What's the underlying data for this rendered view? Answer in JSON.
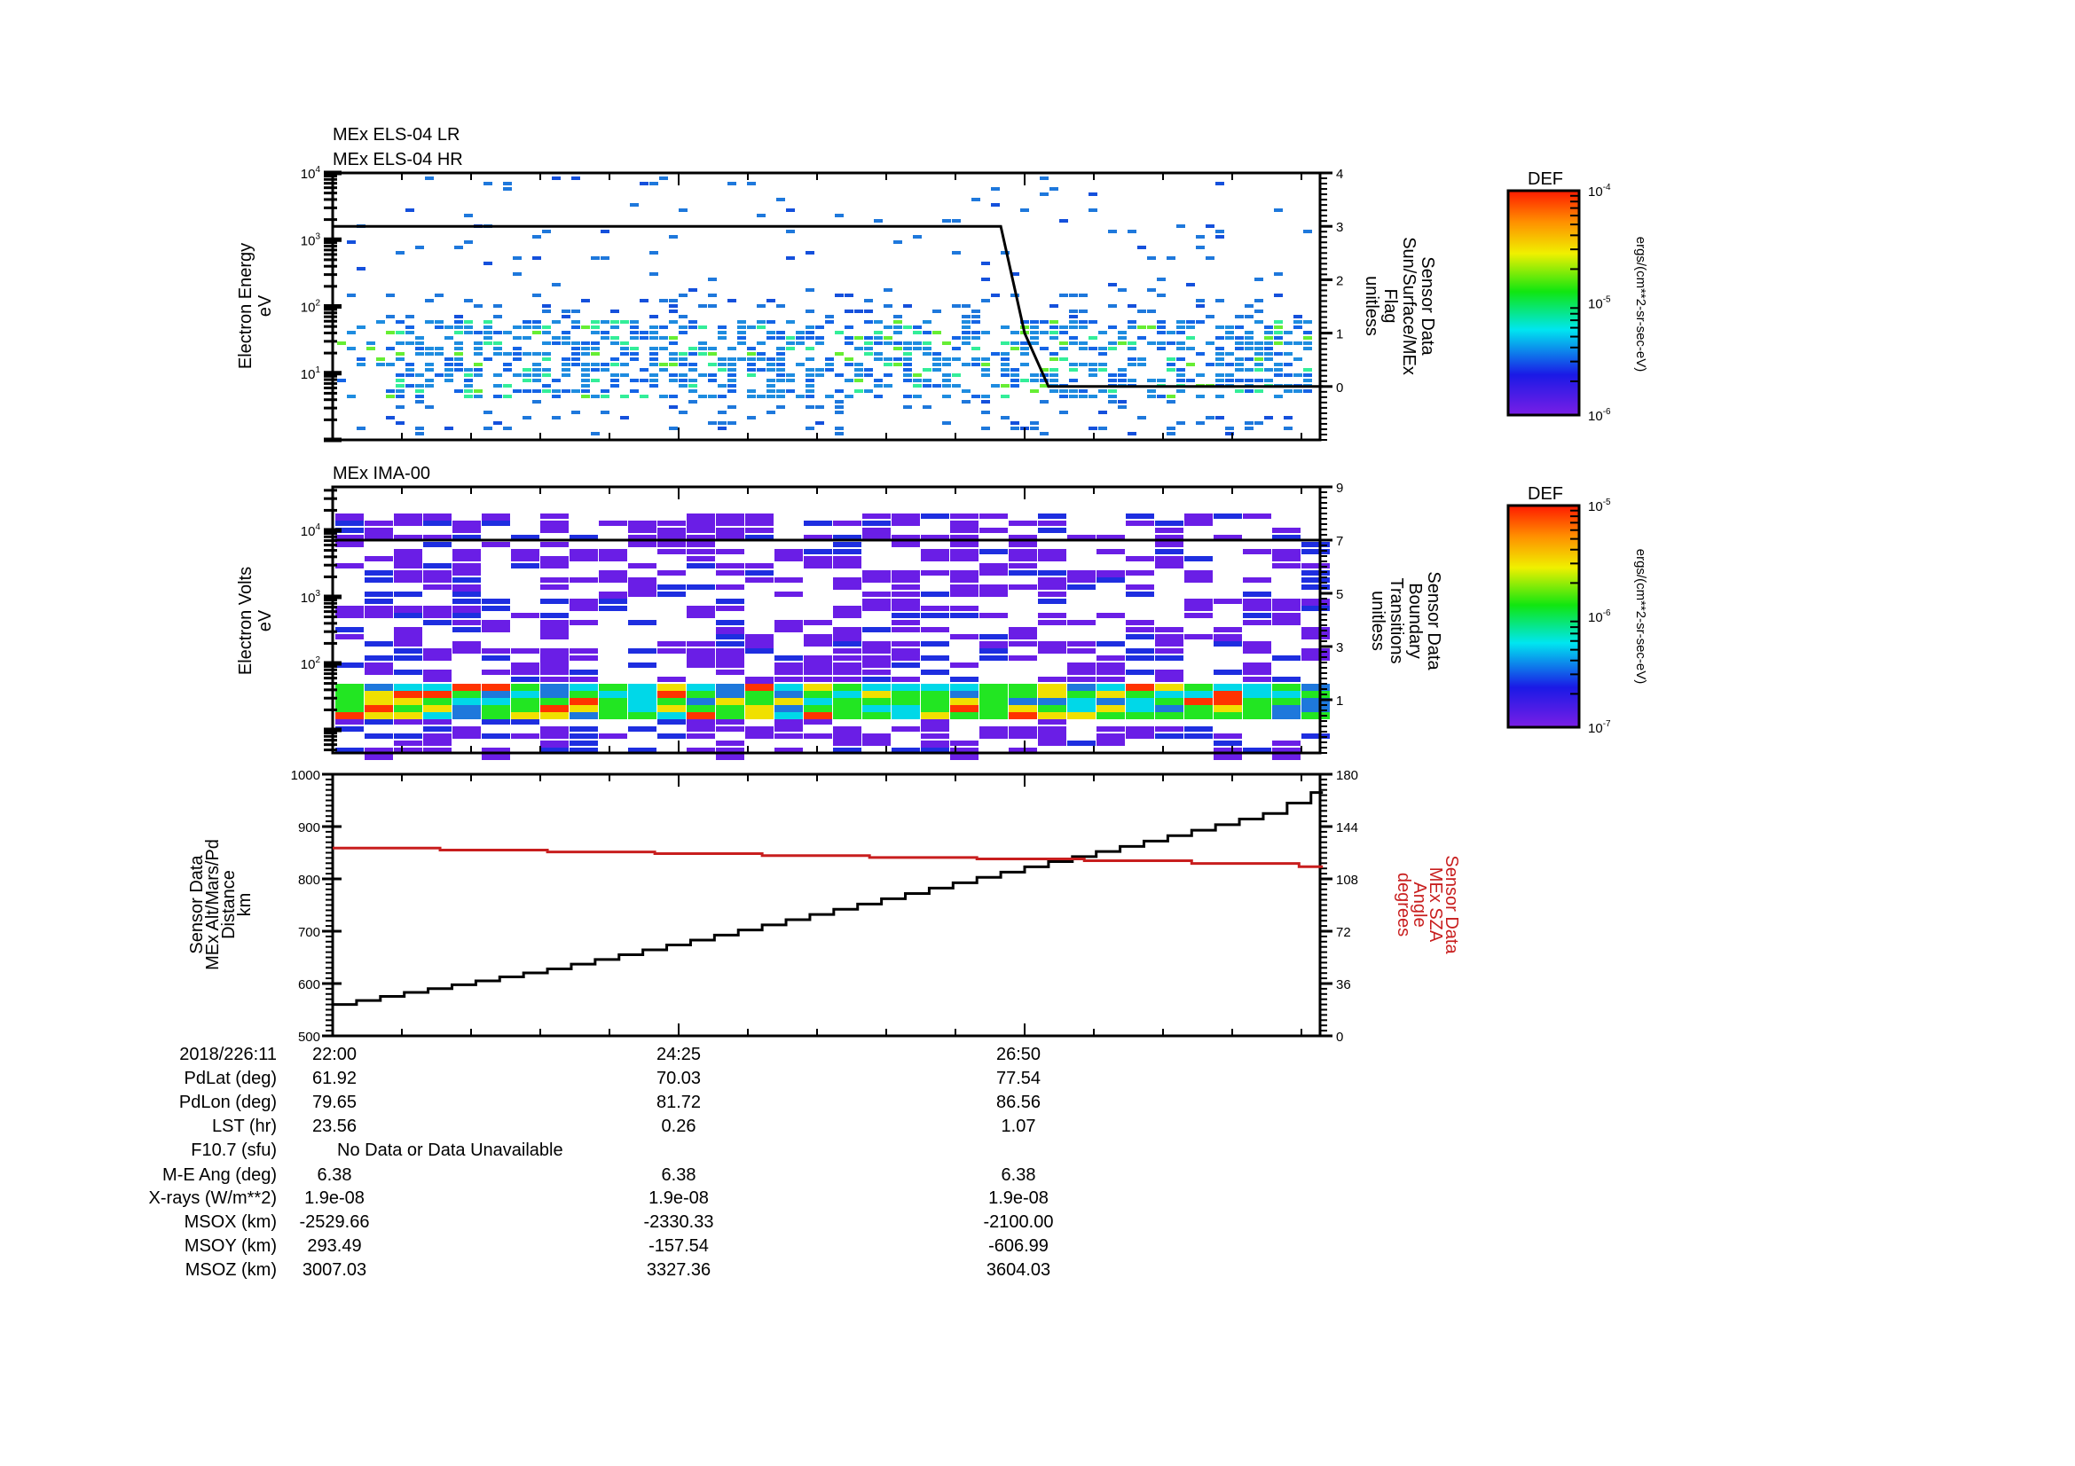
{
  "chart_data": [
    {
      "type": "heatmap",
      "titles": [
        "MEx ELS-04 LR",
        "MEx ELS-04 HR"
      ],
      "ylabel": [
        "Electron Energy",
        "eV"
      ],
      "yscale": "log",
      "ylim": [
        1,
        10000
      ],
      "ytick_labels": [
        {
          "base": "10",
          "exp": "4"
        },
        {
          "base": "10",
          "exp": "3"
        },
        {
          "base": "10",
          "exp": "2"
        },
        {
          "base": "10",
          "exp": "1"
        }
      ],
      "y2label": [
        "Sensor Data",
        "Sun/Surface/MEx",
        "Flag",
        "unitless"
      ],
      "y2lim": [
        -1,
        4
      ],
      "y2ticks": [
        "4",
        "3",
        "2",
        "1",
        "0"
      ],
      "y2_line": {
        "name": "Sun/Surface/MEx Flag",
        "x_sec": [
          0,
          280,
          290,
          300,
          415
        ],
        "y": [
          3,
          3,
          1,
          0,
          0
        ]
      },
      "colorbar": {
        "title": "DEF",
        "label": "ergs/(cm**2-sr-sec-eV)",
        "ticks": [
          {
            "base": "10",
            "exp": "-4"
          },
          {
            "base": "10",
            "exp": "-5"
          },
          {
            "base": "10",
            "exp": "-6"
          }
        ]
      }
    },
    {
      "type": "heatmap",
      "titles": [
        "MEx IMA-00"
      ],
      "ylabel": [
        "Electron Volts",
        "eV"
      ],
      "yscale": "log",
      "ylim": [
        4.5,
        45000
      ],
      "ytick_labels": [
        {
          "base": "10",
          "exp": "4"
        },
        {
          "base": "10",
          "exp": "3"
        },
        {
          "base": "10",
          "exp": "2"
        }
      ],
      "y2label": [
        "Sensor Data",
        "Boundary",
        "Transitions",
        "unitless"
      ],
      "y2lim": [
        -1,
        9
      ],
      "y2ticks": [
        "9",
        "7",
        "5",
        "3",
        "1"
      ],
      "y2_line": {
        "name": "Boundary Transitions",
        "x_sec": [
          0,
          415
        ],
        "y": [
          7,
          7
        ]
      },
      "colorbar": {
        "title": "DEF",
        "label": "ergs/(cm**2-sr-sec-eV)",
        "ticks": [
          {
            "base": "10",
            "exp": "-5"
          },
          {
            "base": "10",
            "exp": "-6"
          },
          {
            "base": "10",
            "exp": "-7"
          }
        ]
      }
    },
    {
      "type": "line",
      "ylabel": [
        "Sensor Data",
        "MEx Alt/Mars/Pd",
        "Distance",
        "km"
      ],
      "ylim": [
        500,
        1000
      ],
      "yticks": [
        "1000",
        "900",
        "800",
        "700",
        "600",
        "500"
      ],
      "y2label": [
        "Sensor Data",
        "MEx SZA",
        "Angle",
        "degrees"
      ],
      "y2lim": [
        0,
        180
      ],
      "y2ticks": [
        "180",
        "144",
        "108",
        "72",
        "36",
        "0"
      ],
      "series": [
        {
          "name": "MEx Alt/Mars/Pd Distance (km)",
          "axis": "left",
          "color": "#000000",
          "x_sec": [
            0,
            30,
            60,
            90,
            120,
            150,
            180,
            210,
            240,
            270,
            300,
            330,
            360,
            390,
            415
          ],
          "y": [
            560,
            583,
            605,
            628,
            655,
            683,
            712,
            742,
            772,
            803,
            833,
            862,
            893,
            925,
            975
          ]
        },
        {
          "name": "MEx SZA Angle (degrees)",
          "axis": "right",
          "color": "#c81e1e",
          "x_sec": [
            0,
            47,
            94,
            139,
            187,
            238,
            288,
            335,
            382,
            415
          ],
          "y": [
            129.2,
            127.8,
            126.4,
            125.3,
            123.8,
            122.4,
            121.3,
            119.9,
            117.4,
            115.9
          ]
        }
      ]
    }
  ],
  "x_axis": {
    "start_label": "2018/226:11",
    "tick_labels": [
      "22:00",
      "24:25",
      "26:50"
    ]
  },
  "ephemeris": {
    "rows": [
      {
        "label": "PdLat (deg)",
        "values": [
          "61.92",
          "70.03",
          "77.54"
        ]
      },
      {
        "label": "PdLon (deg)",
        "values": [
          "79.65",
          "81.72",
          "86.56"
        ]
      },
      {
        "label": "LST (hr)",
        "values": [
          "23.56",
          "0.26",
          "1.07"
        ]
      },
      {
        "label": "F10.7 (sfu)",
        "note": "No Data or Data Unavailable"
      },
      {
        "label": "M-E Ang (deg)",
        "values": [
          "6.38",
          "6.38",
          "6.38"
        ]
      },
      {
        "label": "X-rays (W/m**2)",
        "values": [
          "1.9e-08",
          "1.9e-08",
          "1.9e-08"
        ]
      },
      {
        "label": "MSOX (km)",
        "values": [
          "-2529.66",
          "-2330.33",
          "-2100.00"
        ]
      },
      {
        "label": "MSOY (km)",
        "values": [
          "293.49",
          "-157.54",
          "-606.99"
        ]
      },
      {
        "label": "MSOZ (km)",
        "values": [
          "3007.03",
          "3327.36",
          "3604.03"
        ]
      }
    ]
  }
}
